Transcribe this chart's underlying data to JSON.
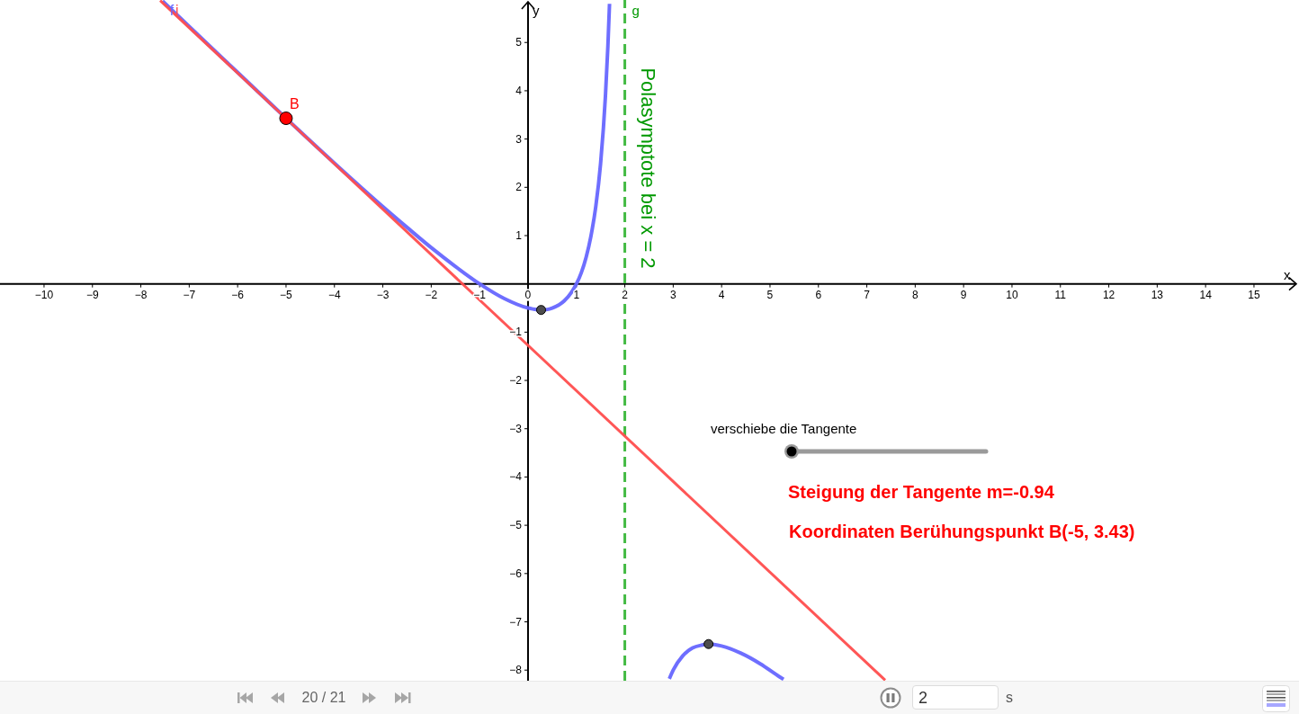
{
  "chart_data": {
    "type": "line",
    "xlabel": "x",
    "ylabel": "y",
    "xlim": [
      -10.91,
      15.93
    ],
    "ylim": [
      -8.22,
      5.88
    ],
    "xticks": [
      {
        "value": -10,
        "label": "−10"
      },
      {
        "value": -9,
        "label": "−9"
      },
      {
        "value": -8,
        "label": "−8"
      },
      {
        "value": -7,
        "label": "−7"
      },
      {
        "value": -6,
        "label": "−6"
      },
      {
        "value": -5,
        "label": "−5"
      },
      {
        "value": -4,
        "label": "−4"
      },
      {
        "value": -3,
        "label": "−3"
      },
      {
        "value": -2,
        "label": "−2"
      },
      {
        "value": -1,
        "label": "−1"
      },
      0,
      1,
      2,
      3,
      4,
      5,
      6,
      7,
      8,
      9,
      10,
      11,
      12,
      13,
      14,
      15
    ],
    "yticks": [
      {
        "value": -8,
        "label": "−8"
      },
      {
        "value": -7,
        "label": "−7"
      },
      {
        "value": -6,
        "label": "−6"
      },
      {
        "value": -5,
        "label": "−5"
      },
      {
        "value": -4,
        "label": "−4"
      },
      {
        "value": -3,
        "label": "−3"
      },
      {
        "value": -2,
        "label": "−2"
      },
      {
        "value": -1,
        "label": "−1"
      },
      1,
      2,
      3,
      4,
      5
    ],
    "series": [
      {
        "name": "f",
        "color": "#6666ff",
        "x": [
          -7.55,
          -7,
          -6,
          -5,
          -4,
          -3,
          -2.5,
          -2,
          -1.5,
          -1,
          -0.5,
          0,
          0.1,
          0.27,
          0.4,
          0.5,
          0.75,
          0.9,
          1,
          1.1,
          1.2,
          1.3,
          1.4,
          1.5,
          1.6,
          1.65,
          1.684,
          2,
          2.92,
          3,
          3.2,
          3.4,
          3.6,
          3.73,
          4,
          4.4,
          4.8,
          5.2,
          5.28
        ],
        "values": [
          5.86,
          5.33,
          4.38,
          3.43,
          2.5,
          1.6,
          1.17,
          0.75,
          0.36,
          0,
          -0.3,
          -0.5,
          -0.52,
          -0.54,
          -0.53,
          -0.5,
          -0.35,
          -0.17,
          0,
          0.23,
          0.55,
          0.99,
          1.6,
          2.5,
          3.9,
          4.92,
          5.8,
          null,
          -8.18,
          -8,
          -7.7,
          -7.54,
          -7.48,
          -7.46,
          -7.5,
          -7.65,
          -7.87,
          -8.14,
          -8.19
        ]
      },
      {
        "name": "i",
        "color": "#ff4d4d",
        "x": [
          -7.6,
          7.38
        ],
        "values": [
          5.87,
          -8.21
        ]
      },
      {
        "name": "B",
        "type": "scatter",
        "marker": "circle",
        "color": "#ff0000",
        "x": [
          -5
        ],
        "values": [
          3.43
        ]
      },
      {
        "type": "scatter",
        "marker": "circle",
        "color": "#4d4d4d",
        "x": [
          0.27,
          3.73
        ],
        "values": [
          -0.54,
          -7.46
        ]
      }
    ],
    "ref_lines": [
      {
        "axis": "x",
        "value": 2,
        "label": "g",
        "color": "#44bb44",
        "line_style": "dashed"
      }
    ],
    "annotations": [
      "Polasymptote bei x = 2",
      "verschiebe die Tangente",
      "Steigung der Tangente m=-0.94",
      "Koordinaten Berühungspunkt B(-5, 3.43)",
      "20 / 21",
      "2",
      "s"
    ]
  }
}
